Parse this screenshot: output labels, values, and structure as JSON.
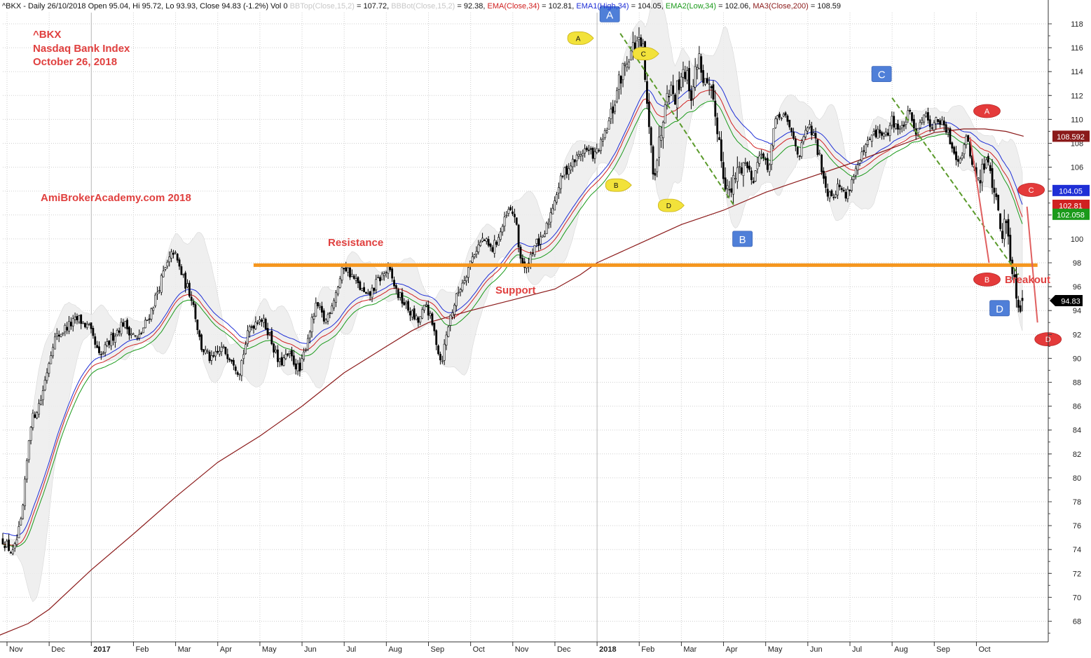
{
  "header": {
    "segments": [
      {
        "text": "^BKX - Daily 26/10/2018 Open 95.04, Hi 95.72, Lo 93.93, Close 94.83 (-1.2%) Vol 0 ",
        "color": "#111111"
      },
      {
        "text": "BBTop(Close,15,2)",
        "color": "#c8c8c8"
      },
      {
        "text": " = 107.72, ",
        "color": "#111111"
      },
      {
        "text": "BBBot(Close,15,2)",
        "color": "#c8c8c8"
      },
      {
        "text": " = 92.38, ",
        "color": "#111111"
      },
      {
        "text": "EMA(Close,34)",
        "color": "#d02020"
      },
      {
        "text": " = 102.81, ",
        "color": "#111111"
      },
      {
        "text": "EMA1(High,34)",
        "color": "#1f2fd6"
      },
      {
        "text": " = 104.05, ",
        "color": "#111111"
      },
      {
        "text": "EMA2(Low,34)",
        "color": "#1a9a1a"
      },
      {
        "text": " = 102.06, ",
        "color": "#111111"
      },
      {
        "text": "MA3(Close,200)",
        "color": "#8b1a1a"
      },
      {
        "text": " = 108.59",
        "color": "#111111"
      }
    ]
  },
  "titles": {
    "ticker": "^BKX",
    "name": "Nasdaq Bank Index",
    "date": "October 26, 2018",
    "watermark": "AmiBrokerAcademy.com  2018"
  },
  "annotations": {
    "resistance": "Resistance",
    "support": "Support",
    "breakout": "Breakout"
  },
  "chart_data": {
    "type": "candlestick",
    "y_axis": {
      "min": 66,
      "max": 119.5,
      "ticks": [
        68,
        70,
        72,
        74,
        76,
        78,
        80,
        82,
        84,
        86,
        88,
        90,
        92,
        94,
        96,
        98,
        100,
        102,
        104,
        106,
        108,
        110,
        112,
        114,
        116,
        118
      ],
      "position": "right"
    },
    "x_axis": {
      "labels": [
        {
          "text": "Nov",
          "month": 0,
          "bold": false
        },
        {
          "text": "Dec",
          "month": 1,
          "bold": false
        },
        {
          "text": "2017",
          "month": 2,
          "bold": true
        },
        {
          "text": "Feb",
          "month": 3,
          "bold": false
        },
        {
          "text": "Mar",
          "month": 4,
          "bold": false
        },
        {
          "text": "Apr",
          "month": 5,
          "bold": false
        },
        {
          "text": "May",
          "month": 6,
          "bold": false
        },
        {
          "text": "Jun",
          "month": 7,
          "bold": false
        },
        {
          "text": "Jul",
          "month": 8,
          "bold": false
        },
        {
          "text": "Aug",
          "month": 9,
          "bold": false
        },
        {
          "text": "Sep",
          "month": 10,
          "bold": false
        },
        {
          "text": "Oct",
          "month": 11,
          "bold": false
        },
        {
          "text": "Nov",
          "month": 12,
          "bold": false
        },
        {
          "text": "Dec",
          "month": 13,
          "bold": false
        },
        {
          "text": "2018",
          "month": 14,
          "bold": true
        },
        {
          "text": "Feb",
          "month": 15,
          "bold": false
        },
        {
          "text": "Mar",
          "month": 16,
          "bold": false
        },
        {
          "text": "Apr",
          "month": 17,
          "bold": false
        },
        {
          "text": "May",
          "month": 18,
          "bold": false
        },
        {
          "text": "Jun",
          "month": 19,
          "bold": false
        },
        {
          "text": "Jul",
          "month": 20,
          "bold": false
        },
        {
          "text": "Aug",
          "month": 21,
          "bold": false
        },
        {
          "text": "Sep",
          "month": 22,
          "bold": false
        },
        {
          "text": "Oct",
          "month": 23,
          "bold": false
        }
      ],
      "range_months": [
        -0.2,
        24.95
      ]
    },
    "price_path": [
      {
        "m": -0.1,
        "v": 74.8
      },
      {
        "m": 0.15,
        "v": 73.6
      },
      {
        "m": 0.35,
        "v": 76.5
      },
      {
        "m": 0.55,
        "v": 84.5
      },
      {
        "m": 0.8,
        "v": 86.5
      },
      {
        "m": 1.1,
        "v": 91.5
      },
      {
        "m": 1.4,
        "v": 92.6
      },
      {
        "m": 1.7,
        "v": 93.3
      },
      {
        "m": 1.95,
        "v": 92.5
      },
      {
        "m": 2.2,
        "v": 90.0
      },
      {
        "m": 2.5,
        "v": 91.8
      },
      {
        "m": 2.75,
        "v": 93.0
      },
      {
        "m": 3.1,
        "v": 91.5
      },
      {
        "m": 3.4,
        "v": 93.8
      },
      {
        "m": 3.7,
        "v": 97.0
      },
      {
        "m": 3.95,
        "v": 99.0
      },
      {
        "m": 4.2,
        "v": 96.5
      },
      {
        "m": 4.4,
        "v": 95.0
      },
      {
        "m": 4.6,
        "v": 91.0
      },
      {
        "m": 4.85,
        "v": 89.8
      },
      {
        "m": 5.1,
        "v": 90.8
      },
      {
        "m": 5.35,
        "v": 90.0
      },
      {
        "m": 5.5,
        "v": 88.8
      },
      {
        "m": 5.75,
        "v": 92.5
      },
      {
        "m": 6.0,
        "v": 93.5
      },
      {
        "m": 6.2,
        "v": 92.3
      },
      {
        "m": 6.45,
        "v": 89.5
      },
      {
        "m": 6.7,
        "v": 90.3
      },
      {
        "m": 6.95,
        "v": 88.9
      },
      {
        "m": 7.15,
        "v": 92.0
      },
      {
        "m": 7.35,
        "v": 94.5
      },
      {
        "m": 7.55,
        "v": 93.0
      },
      {
        "m": 7.8,
        "v": 95.5
      },
      {
        "m": 8.0,
        "v": 97.8
      },
      {
        "m": 8.3,
        "v": 96.3
      },
      {
        "m": 8.55,
        "v": 95.0
      },
      {
        "m": 8.8,
        "v": 96.5
      },
      {
        "m": 9.05,
        "v": 97.5
      },
      {
        "m": 9.25,
        "v": 95.5
      },
      {
        "m": 9.5,
        "v": 94.2
      },
      {
        "m": 9.75,
        "v": 93.0
      },
      {
        "m": 9.95,
        "v": 94.5
      },
      {
        "m": 10.15,
        "v": 92.0
      },
      {
        "m": 10.3,
        "v": 89.6
      },
      {
        "m": 10.5,
        "v": 93.3
      },
      {
        "m": 10.7,
        "v": 95.5
      },
      {
        "m": 10.9,
        "v": 97.2
      },
      {
        "m": 11.1,
        "v": 99.0
      },
      {
        "m": 11.3,
        "v": 100.0
      },
      {
        "m": 11.5,
        "v": 99.0
      },
      {
        "m": 11.7,
        "v": 100.5
      },
      {
        "m": 11.9,
        "v": 102.3
      },
      {
        "m": 12.05,
        "v": 102.0
      },
      {
        "m": 12.15,
        "v": 99.0
      },
      {
        "m": 12.3,
        "v": 97.2
      },
      {
        "m": 12.5,
        "v": 99.5
      },
      {
        "m": 12.7,
        "v": 99.8
      },
      {
        "m": 12.85,
        "v": 101.5
      },
      {
        "m": 13.0,
        "v": 103.5
      },
      {
        "m": 13.2,
        "v": 105.5
      },
      {
        "m": 13.45,
        "v": 106.5
      },
      {
        "m": 13.7,
        "v": 107.5
      },
      {
        "m": 13.95,
        "v": 107.0
      },
      {
        "m": 14.15,
        "v": 108.3
      },
      {
        "m": 14.35,
        "v": 110.5
      },
      {
        "m": 14.55,
        "v": 113.5
      },
      {
        "m": 14.75,
        "v": 115.5
      },
      {
        "m": 14.95,
        "v": 116.5
      },
      {
        "m": 15.1,
        "v": 115.5
      },
      {
        "m": 15.2,
        "v": 110.0
      },
      {
        "m": 15.35,
        "v": 105.5
      },
      {
        "m": 15.5,
        "v": 108.5
      },
      {
        "m": 15.65,
        "v": 113.0
      },
      {
        "m": 15.85,
        "v": 112.0
      },
      {
        "m": 16.05,
        "v": 114.5
      },
      {
        "m": 16.25,
        "v": 112.0
      },
      {
        "m": 16.4,
        "v": 115.5
      },
      {
        "m": 16.55,
        "v": 113.0
      },
      {
        "m": 16.7,
        "v": 112.0
      },
      {
        "m": 16.85,
        "v": 109.5
      },
      {
        "m": 17.0,
        "v": 105.5
      },
      {
        "m": 17.15,
        "v": 103.5
      },
      {
        "m": 17.3,
        "v": 105.5
      },
      {
        "m": 17.5,
        "v": 106.5
      },
      {
        "m": 17.7,
        "v": 105.0
      },
      {
        "m": 17.9,
        "v": 107.5
      },
      {
        "m": 18.05,
        "v": 105.5
      },
      {
        "m": 18.2,
        "v": 109.5
      },
      {
        "m": 18.4,
        "v": 110.5
      },
      {
        "m": 18.6,
        "v": 109.0
      },
      {
        "m": 18.8,
        "v": 107.0
      },
      {
        "m": 19.0,
        "v": 109.5
      },
      {
        "m": 19.15,
        "v": 108.5
      },
      {
        "m": 19.3,
        "v": 106.5
      },
      {
        "m": 19.45,
        "v": 104.0
      },
      {
        "m": 19.6,
        "v": 103.8
      },
      {
        "m": 19.75,
        "v": 104.5
      },
      {
        "m": 19.9,
        "v": 103.5
      },
      {
        "m": 20.1,
        "v": 105.5
      },
      {
        "m": 20.3,
        "v": 107.0
      },
      {
        "m": 20.5,
        "v": 108.5
      },
      {
        "m": 20.7,
        "v": 109.0
      },
      {
        "m": 20.85,
        "v": 108.5
      },
      {
        "m": 21.0,
        "v": 110.0
      },
      {
        "m": 21.2,
        "v": 109.0
      },
      {
        "m": 21.4,
        "v": 110.5
      },
      {
        "m": 21.55,
        "v": 109.0
      },
      {
        "m": 21.75,
        "v": 110.5
      },
      {
        "m": 21.95,
        "v": 109.5
      },
      {
        "m": 22.1,
        "v": 110.0
      },
      {
        "m": 22.3,
        "v": 109.0
      },
      {
        "m": 22.45,
        "v": 107.5
      },
      {
        "m": 22.6,
        "v": 106.5
      },
      {
        "m": 22.75,
        "v": 108.5
      },
      {
        "m": 22.9,
        "v": 106.5
      },
      {
        "m": 23.05,
        "v": 104.5
      },
      {
        "m": 23.2,
        "v": 106.5
      },
      {
        "m": 23.35,
        "v": 105.5
      },
      {
        "m": 23.5,
        "v": 102.5
      },
      {
        "m": 23.6,
        "v": 100.5
      },
      {
        "m": 23.7,
        "v": 101.5
      },
      {
        "m": 23.8,
        "v": 99.0
      },
      {
        "m": 23.88,
        "v": 97.0
      },
      {
        "m": 23.95,
        "v": 95.5
      },
      {
        "m": 24.05,
        "v": 94.3
      },
      {
        "m": 24.12,
        "v": 94.83
      }
    ],
    "indicators": {
      "bb_period": 15,
      "bb_mult": 2,
      "ema_close_period": 34,
      "ema_high_period": 34,
      "ema_low_period": 34,
      "ma_close_period": 200
    },
    "ma200_path": [
      {
        "m": -0.2,
        "v": 66.8
      },
      {
        "m": 0.5,
        "v": 67.8
      },
      {
        "m": 1.0,
        "v": 69.0
      },
      {
        "m": 2.0,
        "v": 72.3
      },
      {
        "m": 3.0,
        "v": 75.3
      },
      {
        "m": 4.0,
        "v": 78.4
      },
      {
        "m": 5.0,
        "v": 81.3
      },
      {
        "m": 6.0,
        "v": 83.5
      },
      {
        "m": 7.0,
        "v": 86.0
      },
      {
        "m": 8.0,
        "v": 88.8
      },
      {
        "m": 9.0,
        "v": 91.0
      },
      {
        "m": 9.6,
        "v": 92.3
      },
      {
        "m": 10.0,
        "v": 93.0
      },
      {
        "m": 11.0,
        "v": 94.0
      },
      {
        "m": 12.0,
        "v": 94.9
      },
      {
        "m": 13.0,
        "v": 95.8
      },
      {
        "m": 13.6,
        "v": 97.0
      },
      {
        "m": 14.0,
        "v": 98.0
      },
      {
        "m": 15.0,
        "v": 99.6
      },
      {
        "m": 16.0,
        "v": 101.2
      },
      {
        "m": 17.0,
        "v": 102.4
      },
      {
        "m": 18.0,
        "v": 103.9
      },
      {
        "m": 19.0,
        "v": 105.1
      },
      {
        "m": 20.0,
        "v": 106.3
      },
      {
        "m": 21.0,
        "v": 107.6
      },
      {
        "m": 22.0,
        "v": 108.9
      },
      {
        "m": 22.7,
        "v": 109.2
      },
      {
        "m": 23.2,
        "v": 109.2
      },
      {
        "m": 23.7,
        "v": 109.0
      },
      {
        "m": 24.12,
        "v": 108.59
      }
    ],
    "price_labels": [
      {
        "text": "108.592",
        "value": 108.592,
        "bg": "#8b1a1a",
        "fg": "#ffffff"
      },
      {
        "text": "104.05",
        "value": 104.05,
        "bg": "#1f2fd6",
        "fg": "#ffffff"
      },
      {
        "text": "102.81",
        "value": 102.81,
        "bg": "#d02020",
        "fg": "#ffffff"
      },
      {
        "text": "102.058",
        "value": 102.058,
        "bg": "#1a9a1a",
        "fg": "#ffffff"
      },
      {
        "text": "94.83",
        "value": 94.83,
        "bg": "#000000",
        "fg": "#ffffff"
      }
    ],
    "horizontal_line": {
      "value": 97.8,
      "from_month": 5.85,
      "to_month": 24.45,
      "color": "#f5961e"
    },
    "trendlines": [
      {
        "from": {
          "m": 14.55,
          "v": 117.2
        },
        "to": {
          "m": 17.25,
          "v": 102.8
        },
        "color": "#5a9a2a",
        "dashed": true
      },
      {
        "from": {
          "m": 21.0,
          "v": 111.8
        },
        "to": {
          "m": 24.0,
          "v": 97.0
        },
        "color": "#5a9a2a",
        "dashed": true
      },
      {
        "from": {
          "m": 22.85,
          "v": 108.5
        },
        "to": {
          "m": 23.3,
          "v": 98.0
        },
        "color": "#e06060",
        "dashed": false
      },
      {
        "from": {
          "m": 24.2,
          "v": 102.7
        },
        "to": {
          "m": 24.45,
          "v": 93.0
        },
        "color": "#e06060",
        "dashed": false
      }
    ],
    "markers": [
      {
        "label": "A",
        "style": "yellow",
        "m": 13.55,
        "v": 116.8
      },
      {
        "label": "B",
        "style": "yellow",
        "m": 14.45,
        "v": 104.5
      },
      {
        "label": "C",
        "style": "yellow",
        "m": 15.1,
        "v": 115.5
      },
      {
        "label": "D",
        "style": "yellow",
        "m": 15.7,
        "v": 102.8
      },
      {
        "label": "A",
        "style": "blue",
        "m": 14.3,
        "v": 118.8
      },
      {
        "label": "B",
        "style": "blue",
        "m": 17.45,
        "v": 100.0
      },
      {
        "label": "C",
        "style": "blue",
        "m": 20.75,
        "v": 113.8
      },
      {
        "label": "D",
        "style": "blue",
        "m": 23.55,
        "v": 94.2
      },
      {
        "label": "A",
        "style": "red",
        "m": 23.25,
        "v": 110.7
      },
      {
        "label": "B",
        "style": "red",
        "m": 23.25,
        "v": 96.6
      },
      {
        "label": "C",
        "style": "red",
        "m": 24.3,
        "v": 104.1
      },
      {
        "label": "D",
        "style": "red",
        "m": 24.7,
        "v": 91.6
      }
    ]
  }
}
